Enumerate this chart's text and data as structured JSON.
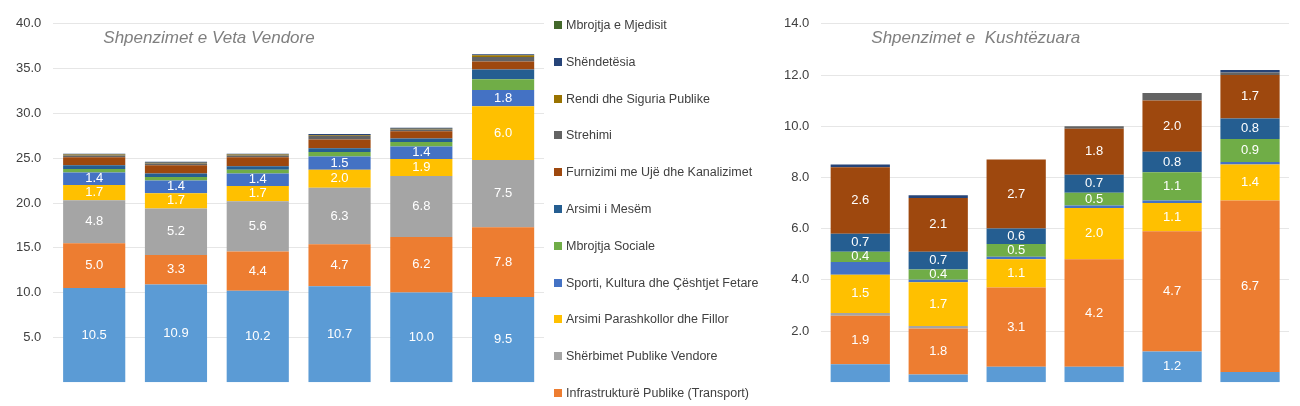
{
  "chart_data": [
    {
      "type": "bar",
      "title": "Shpenzimet e Veta Vendore",
      "stacked": true,
      "categories": [
        null,
        null,
        null,
        null,
        null,
        null
      ],
      "ylim": [
        0,
        40
      ],
      "yticks": [
        {
          "value": 5,
          "label": "5.0"
        },
        {
          "value": 10,
          "label": "10.0"
        },
        {
          "value": 15,
          "label": "15.0"
        },
        {
          "value": 20,
          "label": "20.0"
        },
        {
          "value": 25,
          "label": "25.0"
        },
        {
          "value": 30,
          "label": "30.0"
        },
        {
          "value": 35,
          "label": "35.0"
        },
        {
          "value": 40,
          "label": "40.0"
        }
      ],
      "grid": "y",
      "legend": "right",
      "series": [
        {
          "color": "#5b9bd5",
          "values": [
            10.5,
            10.9,
            10.2,
            10.7,
            10.0,
            9.5
          ],
          "value_labels": [
            "10.5",
            "10.9",
            "10.2",
            "10.7",
            "10.0",
            "9.5"
          ]
        },
        {
          "name": "Infrastrukturë Publike (Transport)",
          "color": "#ed7d31",
          "values": [
            5.0,
            3.3,
            4.4,
            4.7,
            6.2,
            7.8
          ],
          "value_labels": [
            "5.0",
            "3.3",
            "4.4",
            "4.7",
            "6.2",
            "7.8"
          ]
        },
        {
          "name": "Shërbimet Publike Vendore",
          "color": "#a5a5a5",
          "values": [
            4.8,
            5.2,
            5.6,
            6.3,
            6.8,
            7.5
          ],
          "value_labels": [
            "4.8",
            "5.2",
            "5.6",
            "6.3",
            "6.8",
            "7.5"
          ]
        },
        {
          "name": "Arsimi Parashkollor dhe Fillor",
          "color": "#ffc000",
          "values": [
            1.7,
            1.7,
            1.7,
            2.0,
            1.9,
            6.0
          ],
          "value_labels": [
            "1.7",
            "1.7",
            "1.7",
            "2.0",
            "1.9",
            "6.0"
          ]
        },
        {
          "name": "Sporti, Kultura dhe Çështjet Fetare",
          "color": "#4472c4",
          "values": [
            1.4,
            1.4,
            1.4,
            1.5,
            1.4,
            1.8
          ],
          "value_labels": [
            "1.4",
            "1.4",
            "1.4",
            "1.5",
            "1.4",
            "1.8"
          ]
        },
        {
          "name": "Mbrojtja Sociale",
          "color": "#70ad47",
          "values": [
            0.4,
            0.4,
            0.4,
            0.5,
            0.5,
            1.2
          ]
        },
        {
          "name": "Arsimi i Mesëm",
          "color": "#255e91",
          "values": [
            0.4,
            0.4,
            0.4,
            0.4,
            0.4,
            1.1
          ]
        },
        {
          "name": "Furnizimi me Ujë dhe Kanalizimet",
          "color": "#9e480e",
          "values": [
            0.9,
            0.9,
            1.0,
            1.0,
            0.8,
            0.9
          ]
        },
        {
          "name": "Strehimi",
          "color": "#636363",
          "values": [
            0.2,
            0.2,
            0.2,
            0.4,
            0.2,
            0.5
          ]
        },
        {
          "name": "Rendi dhe Siguria Publike",
          "color": "#997300",
          "values": [
            0.1,
            0.1,
            0.1,
            0.1,
            0.1,
            0.2
          ]
        },
        {
          "name": "Shëndetësia",
          "color": "#264478",
          "values": [
            0.1,
            0.1,
            0.1,
            0.1,
            0.1,
            0.1
          ]
        },
        {
          "name": "Mbrojtja e Mjedisit",
          "color": "#43682b",
          "values": [
            null,
            null,
            null,
            null,
            null,
            null
          ]
        }
      ]
    },
    {
      "type": "bar",
      "title": "Shpenzimet e  Kushtëzuara",
      "stacked": true,
      "categories": [
        null,
        null,
        null,
        null,
        null,
        null
      ],
      "ylim": [
        0,
        14
      ],
      "yticks": [
        {
          "value": 2,
          "label": "2.0"
        },
        {
          "value": 4,
          "label": "4.0"
        },
        {
          "value": 6,
          "label": "6.0"
        },
        {
          "value": 8,
          "label": "8.0"
        },
        {
          "value": 10,
          "label": "10.0"
        },
        {
          "value": 12,
          "label": "12.0"
        },
        {
          "value": 14,
          "label": "14.0"
        }
      ],
      "grid": "y",
      "series": [
        {
          "color": "#5b9bd5",
          "values": [
            0.7,
            0.3,
            0.6,
            0.6,
            1.2,
            0.4
          ],
          "value_labels": [
            null,
            null,
            null,
            null,
            "1.2",
            null
          ]
        },
        {
          "color": "#ed7d31",
          "values": [
            1.9,
            1.8,
            3.1,
            4.2,
            4.7,
            6.7
          ],
          "value_labels": [
            "1.9",
            "1.8",
            "3.1",
            "4.2",
            "4.7",
            "6.7"
          ]
        },
        {
          "color": "#a5a5a5",
          "values": [
            0.1,
            0.1,
            null,
            null,
            null,
            null
          ]
        },
        {
          "color": "#ffc000",
          "values": [
            1.5,
            1.7,
            1.1,
            2.0,
            1.1,
            1.4
          ],
          "value_labels": [
            "1.5",
            "1.7",
            "1.1",
            "2.0",
            "1.1",
            "1.4"
          ]
        },
        {
          "color": "#4472c4",
          "values": [
            0.5,
            0.1,
            0.1,
            0.1,
            0.1,
            0.1
          ]
        },
        {
          "color": "#70ad47",
          "values": [
            0.4,
            0.4,
            0.5,
            0.5,
            1.1,
            0.9
          ],
          "value_labels": [
            "0.4",
            "0.4",
            "0.5",
            "0.5",
            "1.1",
            "0.9"
          ]
        },
        {
          "color": "#255e91",
          "values": [
            0.7,
            0.7,
            0.6,
            0.7,
            0.8,
            0.8
          ],
          "value_labels": [
            "0.7",
            "0.7",
            "0.6",
            "0.7",
            "0.8",
            "0.8"
          ]
        },
        {
          "color": "#9e480e",
          "values": [
            2.6,
            2.1,
            2.7,
            1.8,
            2.0,
            1.7
          ],
          "value_labels": [
            "2.6",
            "2.1",
            "2.7",
            "1.8",
            "2.0",
            "1.7"
          ]
        },
        {
          "color": "#636363",
          "values": [
            null,
            null,
            null,
            0.1,
            0.3,
            0.1
          ]
        },
        {
          "color": "#264478",
          "values": [
            0.1,
            0.1,
            null,
            null,
            null,
            0.1
          ]
        }
      ]
    }
  ]
}
